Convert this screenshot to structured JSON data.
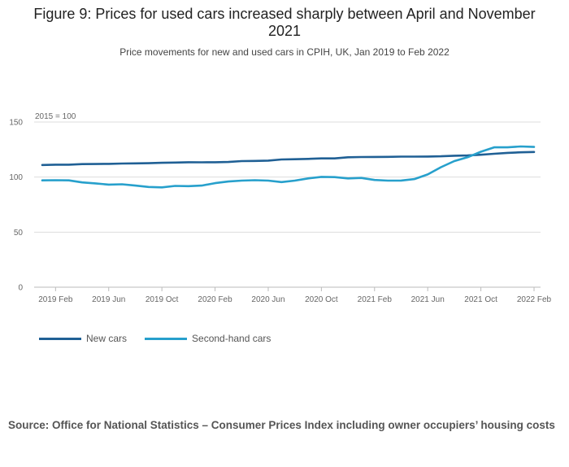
{
  "title": "Figure 9: Prices for used cars increased sharply between April and November 2021",
  "subtitle": "Price movements for new and used cars in CPIH, UK, Jan 2019 to Feb 2022",
  "source": "Source: Office for National Statistics – Consumer Prices Index including owner occupiers’ housing costs",
  "colors": {
    "new_cars": "#206095",
    "second_hand_cars": "#27a0cc",
    "grid": "#dddddd"
  },
  "chart_data": {
    "type": "line",
    "title": "Figure 9: Prices for used cars increased sharply between April and November 2021",
    "subtitle": "Price movements for new and used cars in CPIH, UK, Jan 2019 to Feb 2022",
    "ylabel": "2015 = 100",
    "ylim": [
      0,
      150
    ],
    "yticks": [
      0,
      50,
      100,
      150
    ],
    "x": [
      "2019 Jan",
      "2019 Feb",
      "2019 Mar",
      "2019 Apr",
      "2019 May",
      "2019 Jun",
      "2019 Jul",
      "2019 Aug",
      "2019 Sep",
      "2019 Oct",
      "2019 Nov",
      "2019 Dec",
      "2020 Jan",
      "2020 Feb",
      "2020 Mar",
      "2020 Apr",
      "2020 May",
      "2020 Jun",
      "2020 Jul",
      "2020 Aug",
      "2020 Sep",
      "2020 Oct",
      "2020 Nov",
      "2020 Dec",
      "2021 Jan",
      "2021 Feb",
      "2021 Mar",
      "2021 Apr",
      "2021 May",
      "2021 Jun",
      "2021 Jul",
      "2021 Aug",
      "2021 Sep",
      "2021 Oct",
      "2021 Nov",
      "2021 Dec",
      "2022 Jan",
      "2022 Feb"
    ],
    "xtick_labels": [
      "2019 Feb",
      "2019 Jun",
      "2019 Oct",
      "2020 Feb",
      "2020 Jun",
      "2020 Oct",
      "2021 Feb",
      "2021 Jun",
      "2021 Oct",
      "2022 Feb"
    ],
    "xtick_indices": [
      1,
      5,
      9,
      13,
      17,
      21,
      25,
      29,
      33,
      37
    ],
    "legend_position": "bottom-left",
    "series": [
      {
        "name": "New cars",
        "color": "#206095",
        "values": [
          111.0,
          111.3,
          111.3,
          111.8,
          111.9,
          112.0,
          112.3,
          112.5,
          112.6,
          113.0,
          113.2,
          113.5,
          113.4,
          113.5,
          113.7,
          114.5,
          114.7,
          115.0,
          116.0,
          116.2,
          116.5,
          117.0,
          117.0,
          118.0,
          118.2,
          118.3,
          118.4,
          118.6,
          118.6,
          118.7,
          118.9,
          119.4,
          119.6,
          120.3,
          121.2,
          122.0,
          122.5,
          122.8
        ]
      },
      {
        "name": "Second-hand cars",
        "color": "#27a0cc",
        "values": [
          97.0,
          97.2,
          97.0,
          95.2,
          94.3,
          93.2,
          93.5,
          92.3,
          91.0,
          90.7,
          92.0,
          91.8,
          92.3,
          94.5,
          96.0,
          96.8,
          97.2,
          96.8,
          95.5,
          96.8,
          98.8,
          100.2,
          100.0,
          98.8,
          99.2,
          97.4,
          96.8,
          96.9,
          98.2,
          102.4,
          109.0,
          114.5,
          118.0,
          123.0,
          127.0,
          127.0,
          127.8,
          127.4
        ]
      }
    ]
  }
}
